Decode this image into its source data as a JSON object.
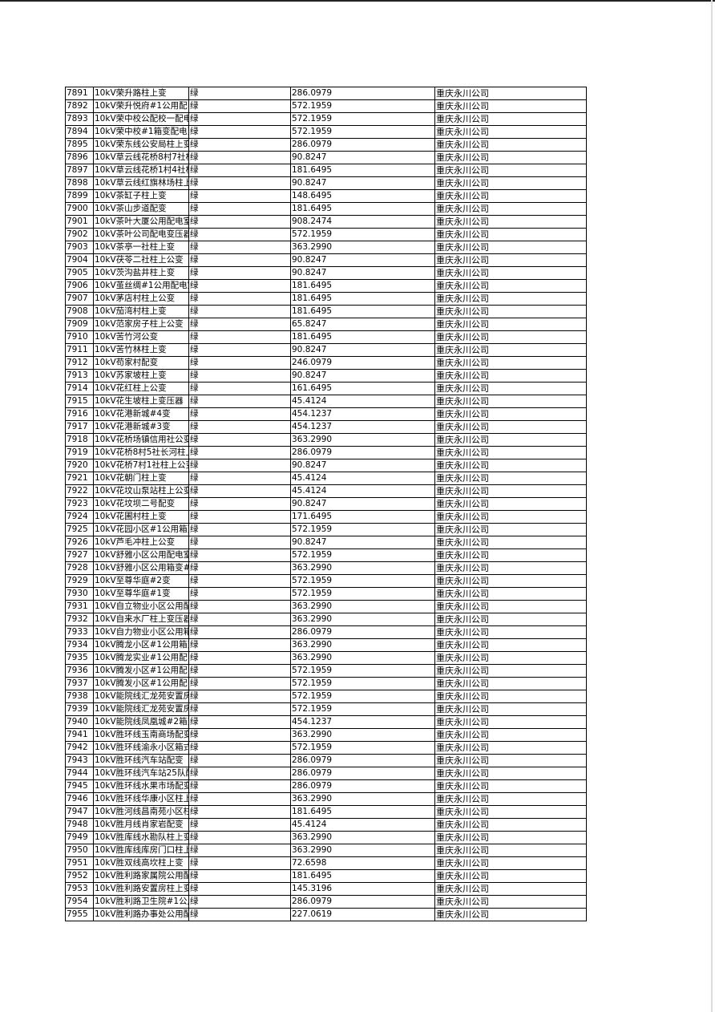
{
  "table": {
    "rows": [
      [
        "7891",
        "10kV荣升路柱上变",
        "绿",
        "286.0979",
        "重庆永川公司"
      ],
      [
        "7892",
        "10kV荣升悦府#1公用配电",
        "绿",
        "572.1959",
        "重庆永川公司"
      ],
      [
        "7893",
        "10kV荣中校公配校一配电",
        "绿",
        "572.1959",
        "重庆永川公司"
      ],
      [
        "7894",
        "10kV荣中校#1箱变配电变",
        "绿",
        "572.1959",
        "重庆永川公司"
      ],
      [
        "7895",
        "10kV荣东线公安局柱上变",
        "绿",
        "286.0979",
        "重庆永川公司"
      ],
      [
        "7896",
        "10kV草云线花桥8村7社柱",
        "绿",
        "90.8247",
        "重庆永川公司"
      ],
      [
        "7897",
        "10kV草云线花桥1村4社柱",
        "绿",
        "181.6495",
        "重庆永川公司"
      ],
      [
        "7898",
        "10kV草云线红旗林场柱上",
        "绿",
        "90.8247",
        "重庆永川公司"
      ],
      [
        "7899",
        "10kV茶缸子柱上变",
        "绿",
        "148.6495",
        "重庆永川公司"
      ],
      [
        "7900",
        "10kV茶山步道配变",
        "绿",
        "181.6495",
        "重庆永川公司"
      ],
      [
        "7901",
        "10kV茶叶大厦公用配电室",
        "绿",
        "908.2474",
        "重庆永川公司"
      ],
      [
        "7902",
        "10kV茶叶公司配电变压器",
        "绿",
        "572.1959",
        "重庆永川公司"
      ],
      [
        "7903",
        "10kV茶亭一社柱上变",
        "绿",
        "363.2990",
        "重庆永川公司"
      ],
      [
        "7904",
        "10kV茯苓二社柱上公变",
        "绿",
        "90.8247",
        "重庆永川公司"
      ],
      [
        "7905",
        "10kV茨沟盐井柱上变",
        "绿",
        "90.8247",
        "重庆永川公司"
      ],
      [
        "7906",
        "10kV茧丝绸#1公用配电室",
        "绿",
        "181.6495",
        "重庆永川公司"
      ],
      [
        "7907",
        "10kV茅店村柱上公变",
        "绿",
        "181.6495",
        "重庆永川公司"
      ],
      [
        "7908",
        "10kV茄湾村柱上变",
        "绿",
        "181.6495",
        "重庆永川公司"
      ],
      [
        "7909",
        "10kV范家房子柱上公变",
        "绿",
        "65.8247",
        "重庆永川公司"
      ],
      [
        "7910",
        "10kV苦竹河公变",
        "绿",
        "181.6495",
        "重庆永川公司"
      ],
      [
        "7911",
        "10kV苦竹林柱上变",
        "绿",
        "90.8247",
        "重庆永川公司"
      ],
      [
        "7912",
        "10kV苟家村配变",
        "绿",
        "246.0979",
        "重庆永川公司"
      ],
      [
        "7913",
        "10kV苏家坡柱上变",
        "绿",
        "90.8247",
        "重庆永川公司"
      ],
      [
        "7914",
        "10kV花红柱上公变",
        "绿",
        "161.6495",
        "重庆永川公司"
      ],
      [
        "7915",
        "10kV花生坡柱上变压器",
        "绿",
        "45.4124",
        "重庆永川公司"
      ],
      [
        "7916",
        "10kV花港新城#4变",
        "绿",
        "454.1237",
        "重庆永川公司"
      ],
      [
        "7917",
        "10kV花港新城#3变",
        "绿",
        "454.1237",
        "重庆永川公司"
      ],
      [
        "7918",
        "10kV花桥场镇信用社公变",
        "绿",
        "363.2990",
        "重庆永川公司"
      ],
      [
        "7919",
        "10kV花桥8村5社长河柱上",
        "绿",
        "286.0979",
        "重庆永川公司"
      ],
      [
        "7920",
        "10kV花桥7村1社柱上公变",
        "绿",
        "90.8247",
        "重庆永川公司"
      ],
      [
        "7921",
        "10kV花朝门柱上变",
        "绿",
        "45.4124",
        "重庆永川公司"
      ],
      [
        "7922",
        "10kV花坟山泵站柱上公变",
        "绿",
        "45.4124",
        "重庆永川公司"
      ],
      [
        "7923",
        "10kV花坟坝二号配变",
        "绿",
        "90.8247",
        "重庆永川公司"
      ],
      [
        "7924",
        "10kV花圃村柱上变",
        "绿",
        "171.6495",
        "重庆永川公司"
      ],
      [
        "7925",
        "10kV花园小区#1公用箱变",
        "绿",
        "572.1959",
        "重庆永川公司"
      ],
      [
        "7926",
        "10kV芦毛冲柱上公变",
        "绿",
        "90.8247",
        "重庆永川公司"
      ],
      [
        "7927",
        "10kV舒雅小区公用配电室",
        "绿",
        "572.1959",
        "重庆永川公司"
      ],
      [
        "7928",
        "10kV舒雅小区公用箱变#1",
        "绿",
        "363.2990",
        "重庆永川公司"
      ],
      [
        "7929",
        "10kV至尊华庭#2变",
        "绿",
        "572.1959",
        "重庆永川公司"
      ],
      [
        "7930",
        "10kV至尊华庭#1变",
        "绿",
        "572.1959",
        "重庆永川公司"
      ],
      [
        "7931",
        "10kV自立物业小区公用配",
        "绿",
        "363.2990",
        "重庆永川公司"
      ],
      [
        "7932",
        "10kV自来水厂柱上变压器",
        "绿",
        "363.2990",
        "重庆永川公司"
      ],
      [
        "7933",
        "10kV自力物业小区公用箱",
        "绿",
        "286.0979",
        "重庆永川公司"
      ],
      [
        "7934",
        "10kV腾龙小区#1公用箱变",
        "绿",
        "363.2990",
        "重庆永川公司"
      ],
      [
        "7935",
        "10kV腾龙实业#1公用配电",
        "绿",
        "363.2990",
        "重庆永川公司"
      ],
      [
        "7936",
        "10kV腾发小区#1公用配电",
        "绿",
        "572.1959",
        "重庆永川公司"
      ],
      [
        "7937",
        "10kV腾发小区#1公用配电",
        "绿",
        "572.1959",
        "重庆永川公司"
      ],
      [
        "7938",
        "10kV能院线汇龙苑安置房",
        "绿",
        "572.1959",
        "重庆永川公司"
      ],
      [
        "7939",
        "10kV能院线汇龙苑安置房",
        "绿",
        "572.1959",
        "重庆永川公司"
      ],
      [
        "7940",
        "10kV能院线凤凰城#2箱变",
        "绿",
        "454.1237",
        "重庆永川公司"
      ],
      [
        "7941",
        "10kV胜环线玉南商场配变",
        "绿",
        "363.2990",
        "重庆永川公司"
      ],
      [
        "7942",
        "10kV胜环线渝永小区箱式",
        "绿",
        "572.1959",
        "重庆永川公司"
      ],
      [
        "7943",
        "10kV胜环线汽车站配变",
        "绿",
        "286.0979",
        "重庆永川公司"
      ],
      [
        "7944",
        "10kV胜环线汽车站25队配",
        "绿",
        "286.0979",
        "重庆永川公司"
      ],
      [
        "7945",
        "10kV胜环线水果市场配变",
        "绿",
        "286.0979",
        "重庆永川公司"
      ],
      [
        "7946",
        "10kV胜环线华康小区柱上",
        "绿",
        "363.2990",
        "重庆永川公司"
      ],
      [
        "7947",
        "10kV胜河线昌南苑小区柱",
        "绿",
        "181.6495",
        "重庆永川公司"
      ],
      [
        "7948",
        "10kV胜月线肖家岩配变",
        "绿",
        "45.4124",
        "重庆永川公司"
      ],
      [
        "7949",
        "10kV胜库线水勘队柱上变",
        "绿",
        "363.2990",
        "重庆永川公司"
      ],
      [
        "7950",
        "10kV胜库线库房门口柱上",
        "绿",
        "363.2990",
        "重庆永川公司"
      ],
      [
        "7951",
        "10kV胜双线高坎柱上变",
        "绿",
        "72.6598",
        "重庆永川公司"
      ],
      [
        "7952",
        "10kV胜利路家属院公用配",
        "绿",
        "181.6495",
        "重庆永川公司"
      ],
      [
        "7953",
        "10kV胜利路安置房柱上变",
        "绿",
        "145.3196",
        "重庆永川公司"
      ],
      [
        "7954",
        "10kV胜利路卫生院#1公用",
        "绿",
        "286.0979",
        "重庆永川公司"
      ],
      [
        "7955",
        "10kV胜利路办事处公用配",
        "绿",
        "227.0619",
        "重庆永川公司"
      ]
    ]
  }
}
